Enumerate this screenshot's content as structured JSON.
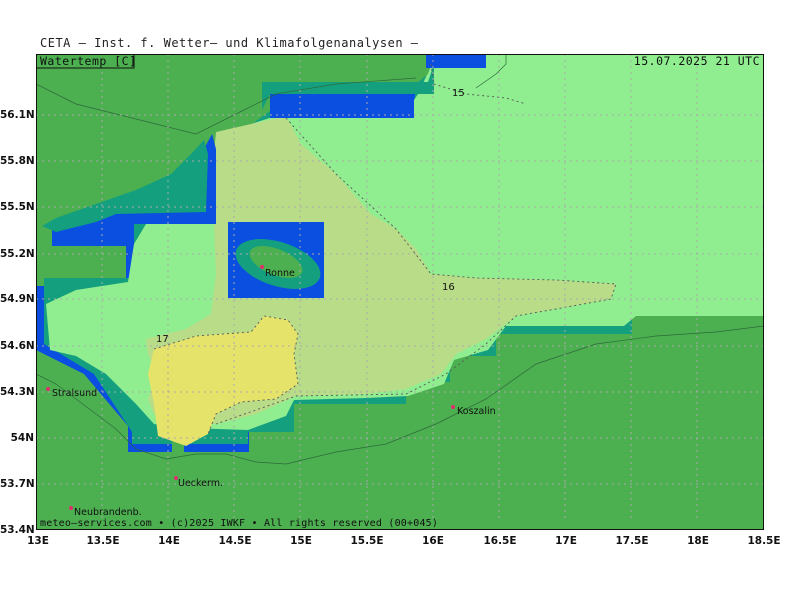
{
  "header": {
    "title": "CETA – Inst. f. Wetter– und Klimafolgenanalysen –",
    "parameter": "Watertemp [C]",
    "valid_time": "15.07.2025 21 UTC",
    "copyright": "meteo–services.com • (c)2025 IWKF • All rights reserved (00+045)"
  },
  "axes": {
    "lat_labels": [
      "56.1N",
      "55.8N",
      "55.5N",
      "55.2N",
      "54.9N",
      "54.6N",
      "54.3N",
      "54N",
      "53.7N",
      "53.4N"
    ],
    "lon_labels": [
      "13E",
      "13.5E",
      "14E",
      "14.5E",
      "15E",
      "15.5E",
      "16E",
      "16.5E",
      "17E",
      "17.5E",
      "18E",
      "18.5E"
    ]
  },
  "isotherms": [
    "15",
    "16",
    "17"
  ],
  "cities": [
    "Stralsund",
    "Ronne",
    "Koszalin",
    "Ueckerm.",
    "Neubrandenb."
  ],
  "colors": {
    "land": "#4caf50",
    "land_border": "#3f9b44",
    "coast_1": "#2e9a5c",
    "coast_2": "#14a07e",
    "coast_3": "#0a4fe0",
    "sea_15": "#90ee90",
    "sea_16": "#b8dc88",
    "sea_17": "#e6e36a",
    "city_marker": "#e0306a"
  }
}
